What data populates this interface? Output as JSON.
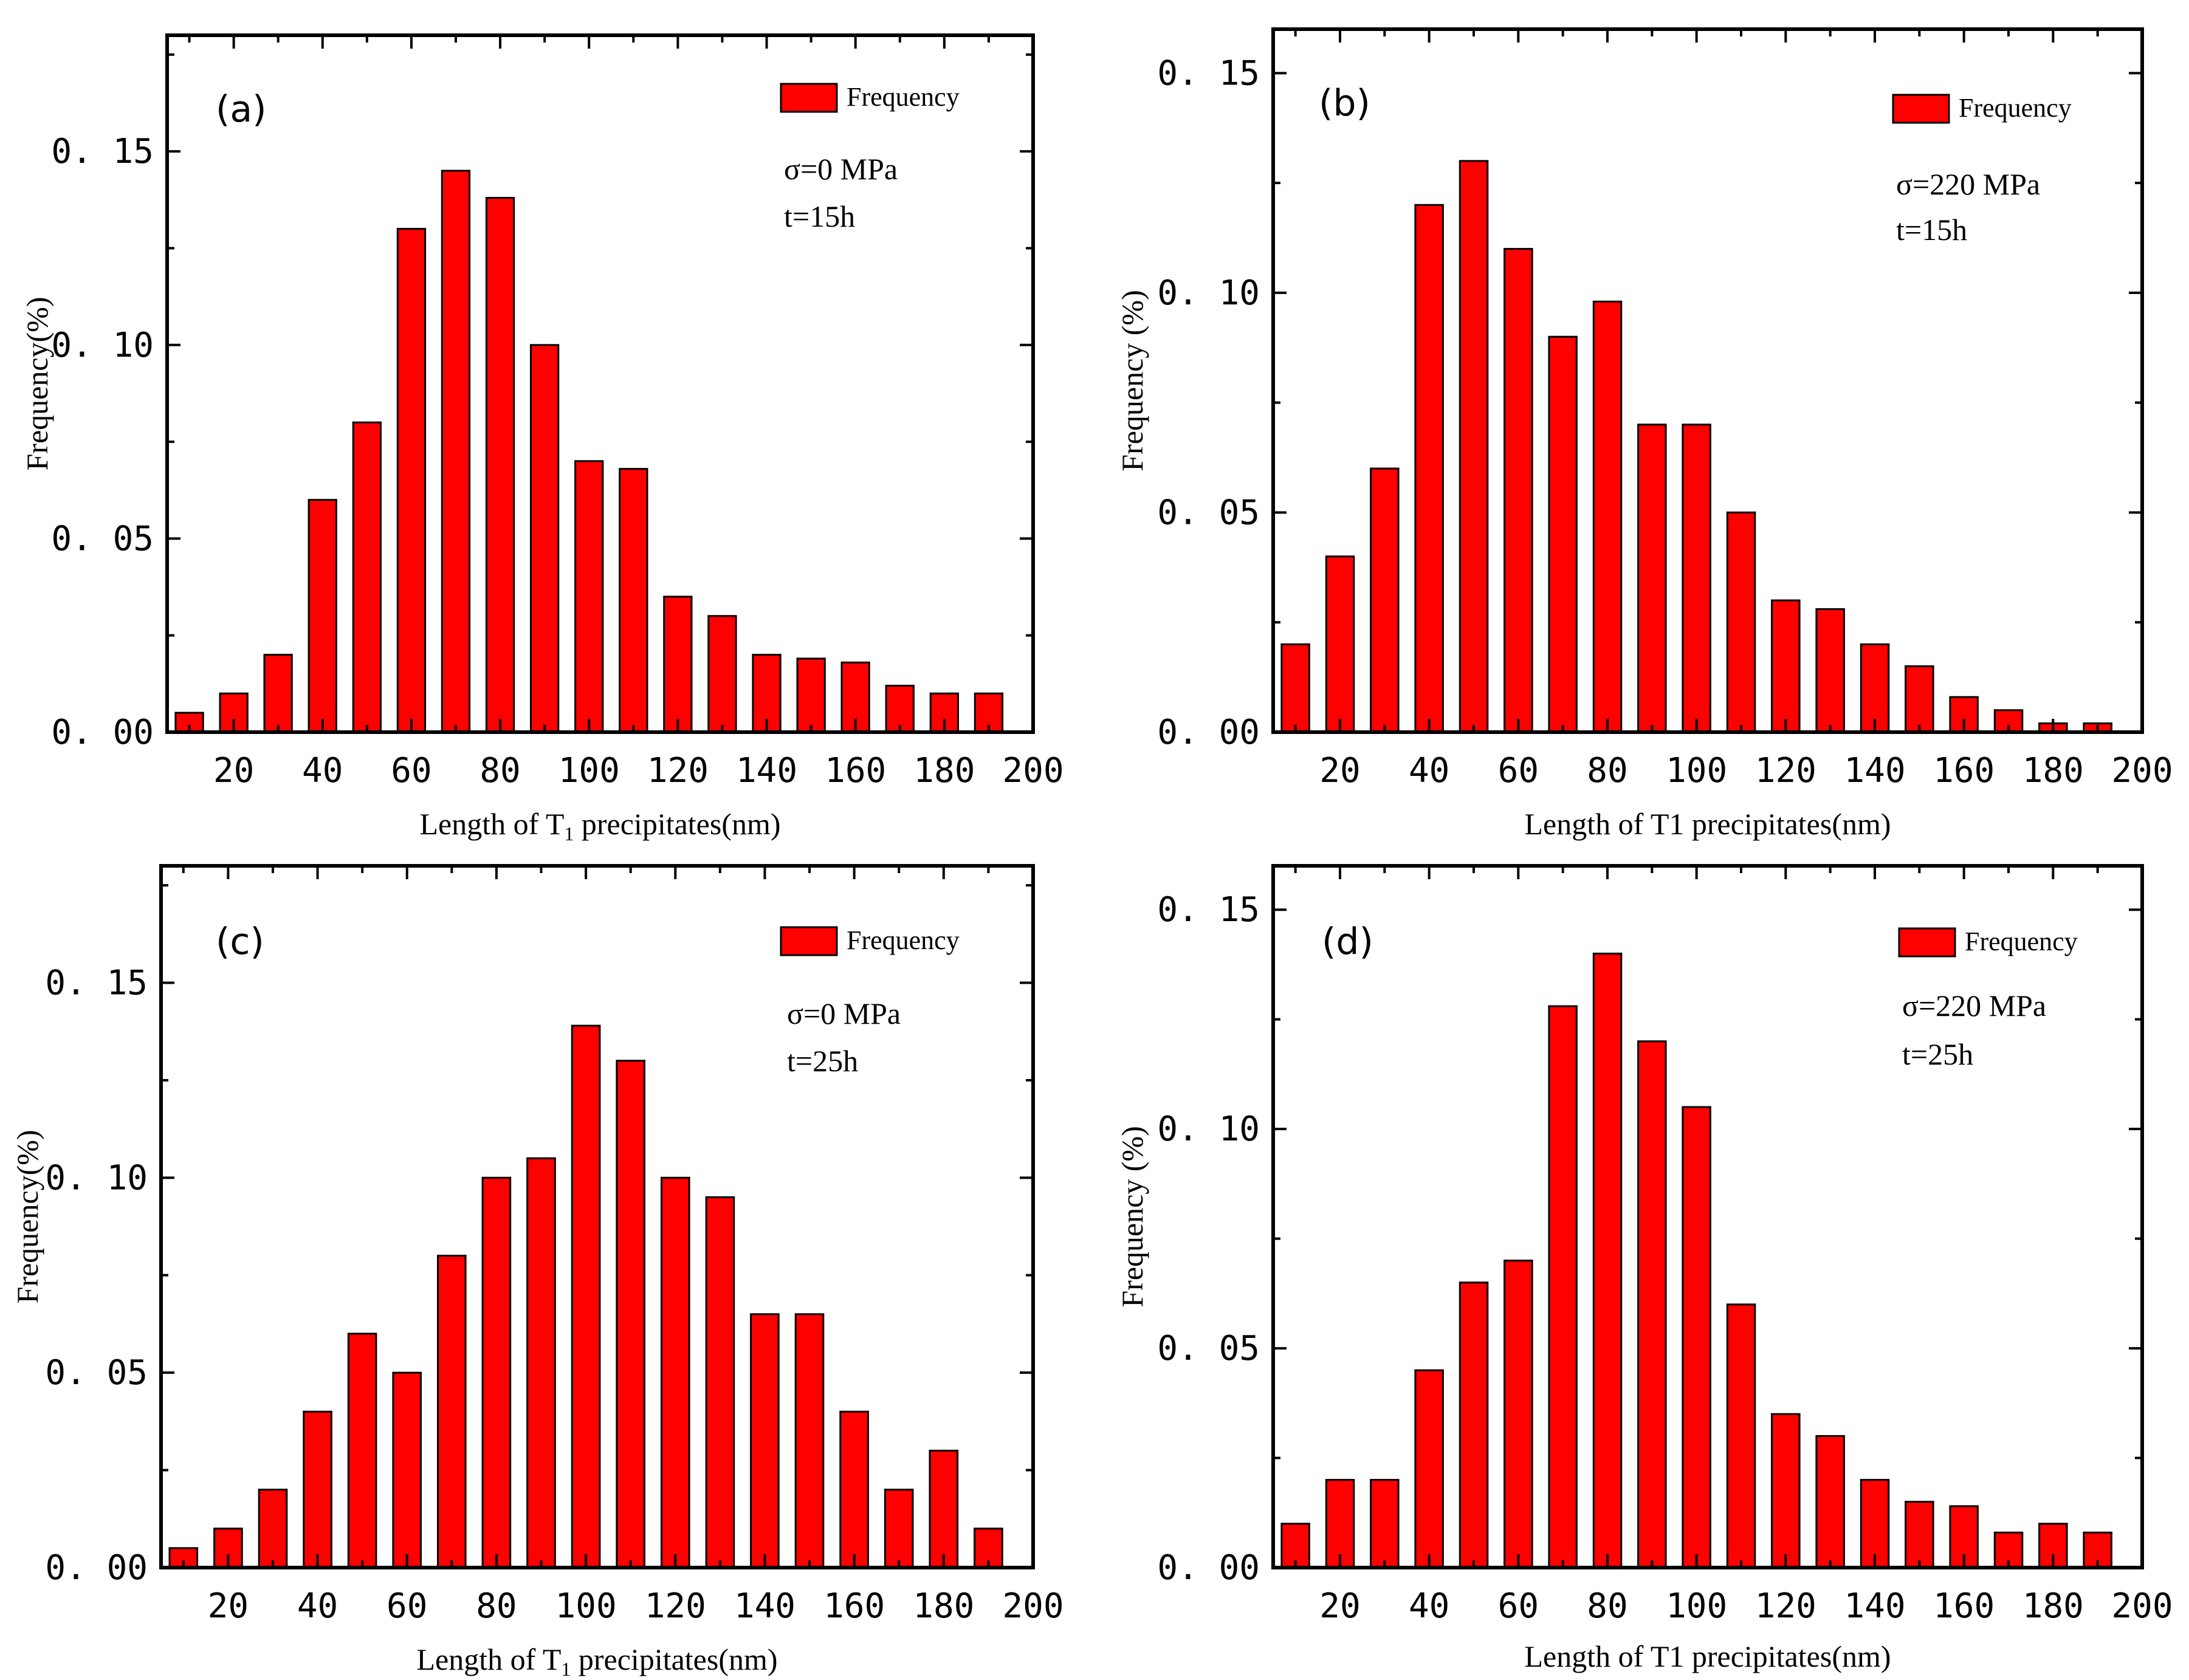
{
  "chart_data": [
    {
      "type": "bar",
      "panel_label": "(a)",
      "xlabel_parts": [
        "Length  of  T",
        "1",
        " precipitates(nm)"
      ],
      "ylabel": "Frequency(%)",
      "xlim": [
        5,
        200
      ],
      "ylim": [
        0,
        0.18
      ],
      "xticks": [
        20,
        40,
        60,
        80,
        100,
        120,
        140,
        160,
        180,
        200
      ],
      "yticks": [
        0,
        0.05,
        0.1,
        0.15
      ],
      "ytick_labels": [
        "0. 00",
        "0. 05",
        "0. 10",
        "0. 15"
      ],
      "legend": "Frequency",
      "annotations": [
        "σ=0 MPa",
        "t=15h"
      ],
      "categories": [
        10,
        20,
        30,
        40,
        50,
        60,
        70,
        80,
        90,
        100,
        110,
        120,
        130,
        140,
        150,
        160,
        170,
        180,
        190
      ],
      "values": [
        0.005,
        0.01,
        0.02,
        0.06,
        0.08,
        0.13,
        0.145,
        0.138,
        0.1,
        0.07,
        0.068,
        0.035,
        0.03,
        0.02,
        0.019,
        0.018,
        0.012,
        0.01,
        0.01
      ],
      "bar_color": "#ff0000"
    },
    {
      "type": "bar",
      "panel_label": "(b)",
      "xlabel_parts": [
        "Length of T1 precipitates(nm)"
      ],
      "ylabel": "Frequency (%)",
      "xlim": [
        5,
        200
      ],
      "ylim": [
        0,
        0.16
      ],
      "xticks": [
        20,
        40,
        60,
        80,
        100,
        120,
        140,
        160,
        180,
        200
      ],
      "yticks": [
        0,
        0.05,
        0.1,
        0.15
      ],
      "ytick_labels": [
        "0. 00",
        "0. 05",
        "0. 10",
        "0. 15"
      ],
      "legend": "Frequency",
      "annotations": [
        "σ=220 MPa",
        "t=15h"
      ],
      "categories": [
        10,
        20,
        30,
        40,
        50,
        60,
        70,
        80,
        90,
        100,
        110,
        120,
        130,
        140,
        150,
        160,
        170,
        180,
        190
      ],
      "values": [
        0.02,
        0.04,
        0.06,
        0.12,
        0.13,
        0.11,
        0.09,
        0.098,
        0.07,
        0.07,
        0.05,
        0.03,
        0.028,
        0.02,
        0.015,
        0.008,
        0.005,
        0.002,
        0.002
      ],
      "bar_color": "#ff0000"
    },
    {
      "type": "bar",
      "panel_label": "(c)",
      "xlabel_parts": [
        "Length  of  T",
        "1",
        " precipitates(nm)"
      ],
      "ylabel": "Frequency(%)",
      "xlim": [
        5,
        200
      ],
      "ylim": [
        0,
        0.18
      ],
      "xticks": [
        20,
        40,
        60,
        80,
        100,
        120,
        140,
        160,
        180,
        200
      ],
      "yticks": [
        0,
        0.05,
        0.1,
        0.15
      ],
      "ytick_labels": [
        "0. 00",
        "0. 05",
        "0. 10",
        "0. 15"
      ],
      "legend": "Frequency",
      "annotations": [
        "σ=0 MPa",
        "t=25h"
      ],
      "categories": [
        10,
        20,
        30,
        40,
        50,
        60,
        70,
        80,
        90,
        100,
        110,
        120,
        130,
        140,
        150,
        160,
        170,
        180,
        190
      ],
      "values": [
        0.005,
        0.01,
        0.02,
        0.04,
        0.06,
        0.05,
        0.08,
        0.1,
        0.105,
        0.139,
        0.13,
        0.1,
        0.095,
        0.065,
        0.065,
        0.04,
        0.02,
        0.03,
        0.01
      ],
      "bar_color": "#ff0000"
    },
    {
      "type": "bar",
      "panel_label": "(d)",
      "xlabel_parts": [
        "Length of T1 precipitates(nm)"
      ],
      "ylabel": "Frequency (%)",
      "xlim": [
        5,
        200
      ],
      "ylim": [
        0,
        0.16
      ],
      "xticks": [
        20,
        40,
        60,
        80,
        100,
        120,
        140,
        160,
        180,
        200
      ],
      "yticks": [
        0,
        0.05,
        0.1,
        0.15
      ],
      "ytick_labels": [
        "0. 00",
        "0. 05",
        "0. 10",
        "0. 15"
      ],
      "legend": "Frequency",
      "annotations": [
        "σ=220 MPa",
        "t=25h"
      ],
      "categories": [
        10,
        20,
        30,
        40,
        50,
        60,
        70,
        80,
        90,
        100,
        110,
        120,
        130,
        140,
        150,
        160,
        170,
        180,
        190
      ],
      "values": [
        0.01,
        0.02,
        0.02,
        0.045,
        0.065,
        0.07,
        0.128,
        0.14,
        0.12,
        0.105,
        0.06,
        0.035,
        0.03,
        0.02,
        0.015,
        0.014,
        0.008,
        0.01,
        0.008
      ],
      "bar_color": "#ff0000"
    }
  ]
}
